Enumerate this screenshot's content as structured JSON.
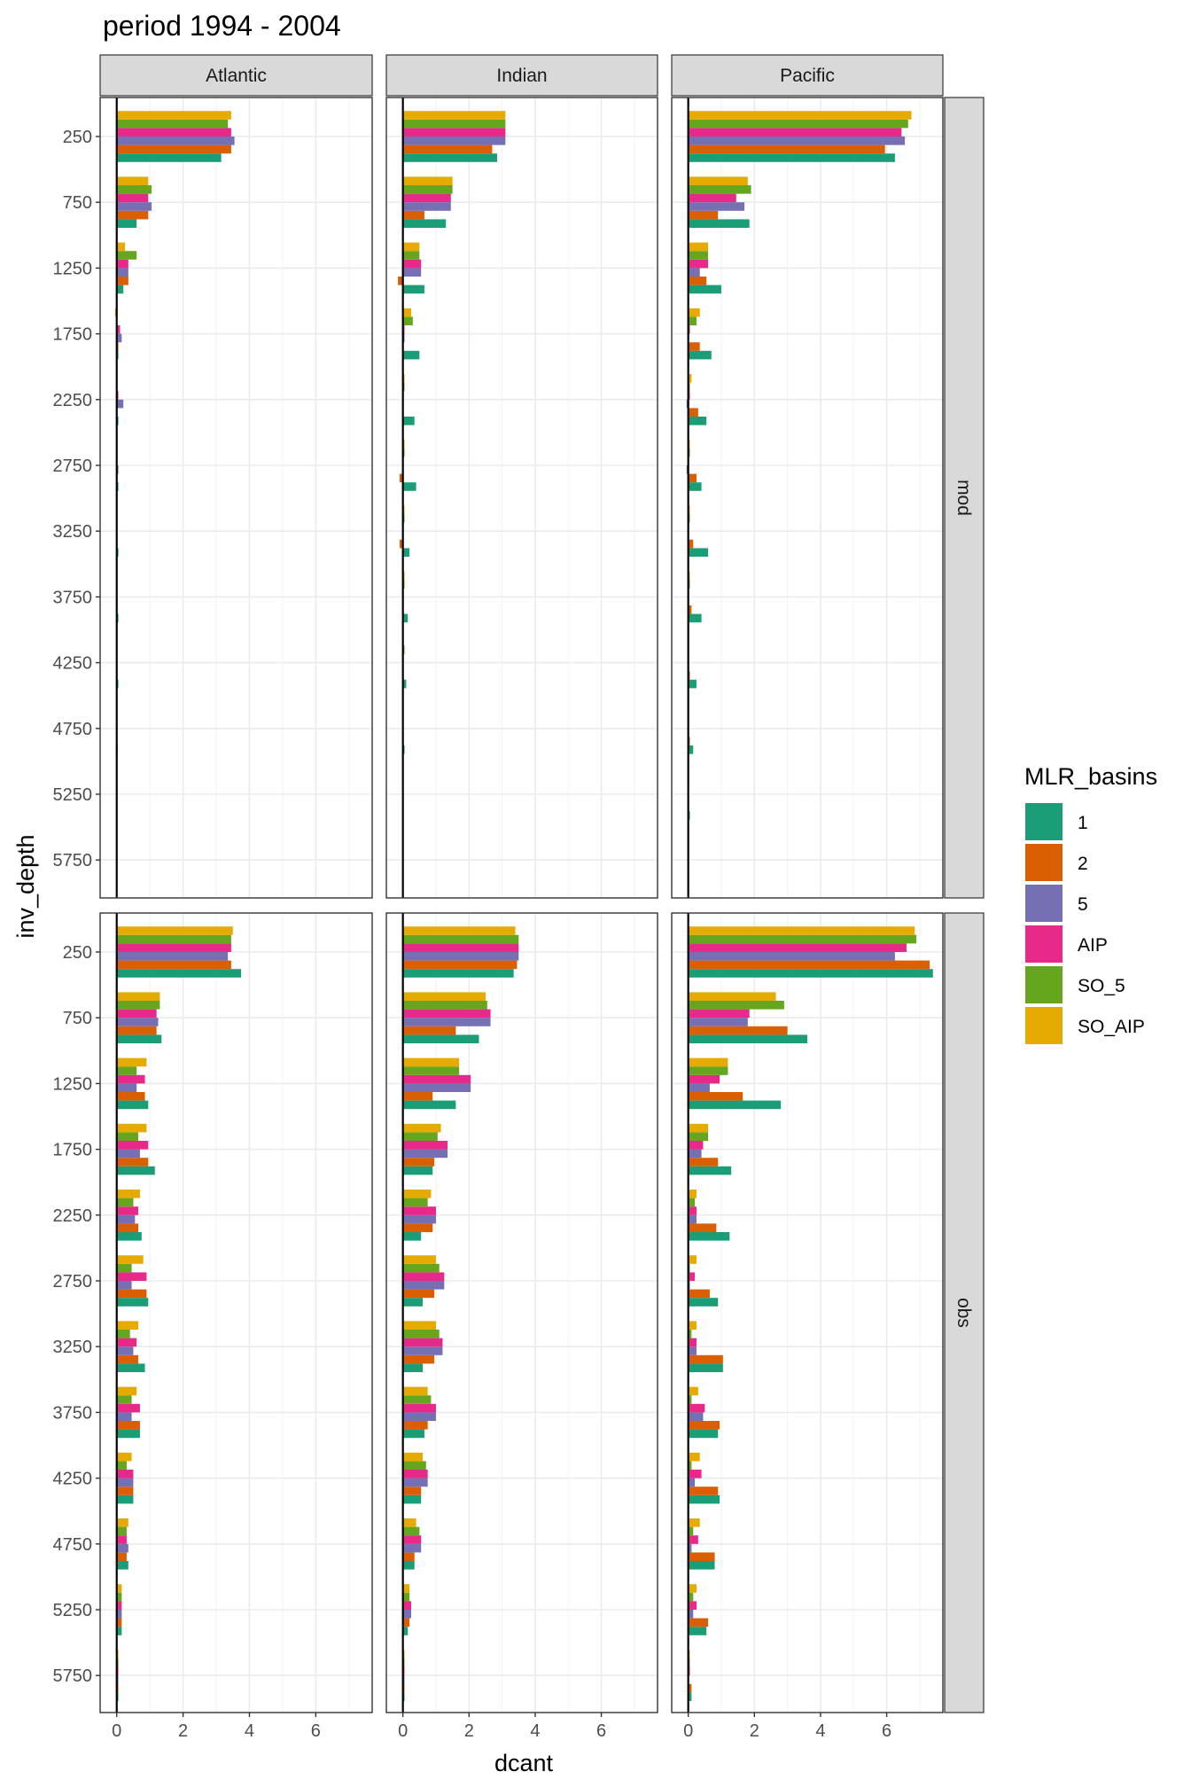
{
  "chart_data": {
    "type": "bar",
    "title": "period 1994 - 2004",
    "xlabel": "dcant",
    "ylabel": "inv_depth",
    "xlim": [
      -0.5,
      7.7
    ],
    "x_ticks": [
      0,
      2,
      4,
      6
    ],
    "y_categories": [
      250,
      750,
      1250,
      1750,
      2250,
      2750,
      3250,
      3750,
      4250,
      4750,
      5250,
      5750
    ],
    "y_tick_labels": [
      "250",
      "750",
      "1250",
      "1750",
      "2250",
      "2750",
      "3250",
      "3750",
      "4250",
      "4750",
      "5250",
      "5750"
    ],
    "grid": true,
    "legend_position": "right",
    "legend": {
      "title": "MLR_basins",
      "entries": [
        {
          "label": "1",
          "color": "#1B9E77"
        },
        {
          "label": "2",
          "color": "#D95F02"
        },
        {
          "label": "5",
          "color": "#7570B3"
        },
        {
          "label": "AIP",
          "color": "#E7298A"
        },
        {
          "label": "SO_5",
          "color": "#66A61E"
        },
        {
          "label": "SO_AIP",
          "color": "#E6AB02"
        }
      ]
    },
    "col_facets": [
      "Atlantic",
      "Indian",
      "Pacific"
    ],
    "row_facets": [
      "mod",
      "obs"
    ],
    "series_order": [
      "1",
      "2",
      "5",
      "AIP",
      "SO_5",
      "SO_AIP"
    ],
    "panels": [
      {
        "row": "mod",
        "col": "Atlantic",
        "values": [
          [
            3.15,
            3.45,
            3.55,
            3.45,
            3.35,
            3.45
          ],
          [
            0.6,
            0.95,
            1.05,
            0.95,
            1.05,
            0.95
          ],
          [
            0.2,
            0.35,
            0.35,
            0.35,
            0.6,
            0.25
          ],
          [
            0.05,
            0.05,
            0.15,
            0.1,
            0.0,
            -0.05
          ],
          [
            0.05,
            0.0,
            0.2,
            0.05,
            0.0,
            0.0
          ],
          [
            0.05,
            0.0,
            0.05,
            0.0,
            0.0,
            0.0
          ],
          [
            0.05,
            0.0,
            0.0,
            0.0,
            0.0,
            0.0
          ],
          [
            0.05,
            0.0,
            0.0,
            0.0,
            0.0,
            0.0
          ],
          [
            0.05,
            0.0,
            0.0,
            0.0,
            0.0,
            0.0
          ],
          [
            0.03,
            0.0,
            0.0,
            0.0,
            0.0,
            0.0
          ],
          [
            0.02,
            0.0,
            0.0,
            0.0,
            0.0,
            0.0
          ],
          [
            0.0,
            0.0,
            0.0,
            0.0,
            0.0,
            0.0
          ]
        ]
      },
      {
        "row": "mod",
        "col": "Indian",
        "values": [
          [
            2.85,
            2.7,
            3.1,
            3.1,
            3.1,
            3.1
          ],
          [
            1.3,
            0.65,
            1.45,
            1.45,
            1.5,
            1.5
          ],
          [
            0.65,
            -0.15,
            0.55,
            0.55,
            0.5,
            0.5
          ],
          [
            0.5,
            0.0,
            0.05,
            0.05,
            0.3,
            0.25
          ],
          [
            0.35,
            0.0,
            0.0,
            0.0,
            0.05,
            0.05
          ],
          [
            0.4,
            -0.1,
            0.0,
            0.0,
            0.05,
            0.05
          ],
          [
            0.2,
            -0.1,
            0.0,
            0.0,
            0.05,
            0.05
          ],
          [
            0.15,
            0.0,
            0.0,
            0.0,
            0.05,
            0.05
          ],
          [
            0.1,
            0.0,
            0.0,
            0.0,
            0.05,
            0.0
          ],
          [
            0.05,
            0.0,
            0.0,
            0.0,
            0.0,
            0.0
          ],
          [
            0.0,
            0.0,
            0.0,
            0.0,
            0.0,
            0.0
          ],
          [
            0.0,
            0.0,
            0.0,
            0.0,
            0.0,
            0.0
          ]
        ]
      },
      {
        "row": "mod",
        "col": "Pacific",
        "values": [
          [
            6.25,
            5.95,
            6.55,
            6.45,
            6.65,
            6.75
          ],
          [
            1.85,
            0.9,
            1.7,
            1.45,
            1.9,
            1.8
          ],
          [
            1.0,
            0.55,
            0.35,
            0.6,
            0.6,
            0.6
          ],
          [
            0.7,
            0.35,
            0.0,
            0.05,
            0.25,
            0.35
          ],
          [
            0.55,
            0.3,
            -0.05,
            0.05,
            0.05,
            0.1
          ],
          [
            0.4,
            0.25,
            -0.05,
            0.0,
            0.05,
            0.05
          ],
          [
            0.6,
            0.15,
            0.0,
            0.0,
            0.05,
            0.05
          ],
          [
            0.4,
            0.1,
            0.0,
            0.0,
            0.05,
            0.05
          ],
          [
            0.25,
            0.05,
            0.0,
            0.0,
            0.0,
            0.0
          ],
          [
            0.15,
            0.05,
            0.0,
            0.0,
            0.0,
            0.0
          ],
          [
            0.05,
            0.0,
            0.0,
            0.0,
            0.0,
            0.0
          ],
          [
            0.0,
            0.0,
            0.0,
            0.0,
            0.0,
            0.0
          ]
        ]
      },
      {
        "row": "obs",
        "col": "Atlantic",
        "values": [
          [
            3.75,
            3.45,
            3.35,
            3.45,
            3.45,
            3.5
          ],
          [
            1.35,
            1.2,
            1.25,
            1.2,
            1.3,
            1.3
          ],
          [
            0.95,
            0.85,
            0.6,
            0.85,
            0.6,
            0.9
          ],
          [
            1.15,
            0.95,
            0.7,
            0.95,
            0.65,
            0.9
          ],
          [
            0.75,
            0.65,
            0.55,
            0.65,
            0.5,
            0.7
          ],
          [
            0.95,
            0.9,
            0.45,
            0.9,
            0.45,
            0.8
          ],
          [
            0.85,
            0.65,
            0.5,
            0.6,
            0.4,
            0.65
          ],
          [
            0.7,
            0.7,
            0.45,
            0.7,
            0.45,
            0.6
          ],
          [
            0.5,
            0.5,
            0.5,
            0.5,
            0.3,
            0.45
          ],
          [
            0.35,
            0.3,
            0.35,
            0.3,
            0.3,
            0.35
          ],
          [
            0.15,
            0.15,
            0.15,
            0.15,
            0.15,
            0.15
          ],
          [
            0.05,
            0.05,
            0.05,
            0.05,
            0.05,
            0.05
          ]
        ]
      },
      {
        "row": "obs",
        "col": "Indian",
        "values": [
          [
            3.35,
            3.45,
            3.5,
            3.5,
            3.5,
            3.4
          ],
          [
            2.3,
            1.6,
            2.65,
            2.65,
            2.55,
            2.5
          ],
          [
            1.6,
            0.9,
            2.05,
            2.05,
            1.7,
            1.7
          ],
          [
            0.9,
            0.95,
            1.35,
            1.35,
            1.05,
            1.15
          ],
          [
            0.55,
            0.9,
            1.0,
            1.0,
            0.75,
            0.85
          ],
          [
            0.6,
            0.95,
            1.25,
            1.25,
            1.1,
            1.0
          ],
          [
            0.6,
            0.95,
            1.2,
            1.2,
            1.1,
            1.0
          ],
          [
            0.65,
            0.75,
            1.0,
            1.0,
            0.85,
            0.75
          ],
          [
            0.55,
            0.55,
            0.75,
            0.75,
            0.7,
            0.6
          ],
          [
            0.35,
            0.35,
            0.55,
            0.55,
            0.5,
            0.4
          ],
          [
            0.15,
            0.2,
            0.25,
            0.25,
            0.2,
            0.2
          ],
          [
            0.05,
            0.05,
            0.05,
            0.05,
            0.05,
            0.05
          ]
        ]
      },
      {
        "row": "obs",
        "col": "Pacific",
        "values": [
          [
            7.4,
            7.3,
            6.25,
            6.6,
            6.9,
            6.85
          ],
          [
            3.6,
            3.0,
            1.8,
            1.85,
            2.9,
            2.65
          ],
          [
            2.8,
            1.65,
            0.65,
            0.95,
            1.2,
            1.2
          ],
          [
            1.3,
            0.9,
            0.4,
            0.45,
            0.6,
            0.6
          ],
          [
            1.25,
            0.85,
            0.25,
            0.25,
            0.2,
            0.25
          ],
          [
            0.9,
            0.65,
            0.05,
            0.2,
            0.05,
            0.25
          ],
          [
            1.05,
            1.05,
            0.25,
            0.25,
            0.1,
            0.25
          ],
          [
            0.9,
            0.95,
            0.45,
            0.5,
            0.1,
            0.3
          ],
          [
            0.95,
            0.9,
            0.2,
            0.4,
            0.1,
            0.35
          ],
          [
            0.8,
            0.8,
            0.1,
            0.3,
            0.15,
            0.35
          ],
          [
            0.55,
            0.6,
            0.15,
            0.25,
            0.15,
            0.25
          ],
          [
            0.1,
            0.1,
            0.0,
            0.05,
            0.05,
            0.05
          ]
        ]
      }
    ]
  }
}
